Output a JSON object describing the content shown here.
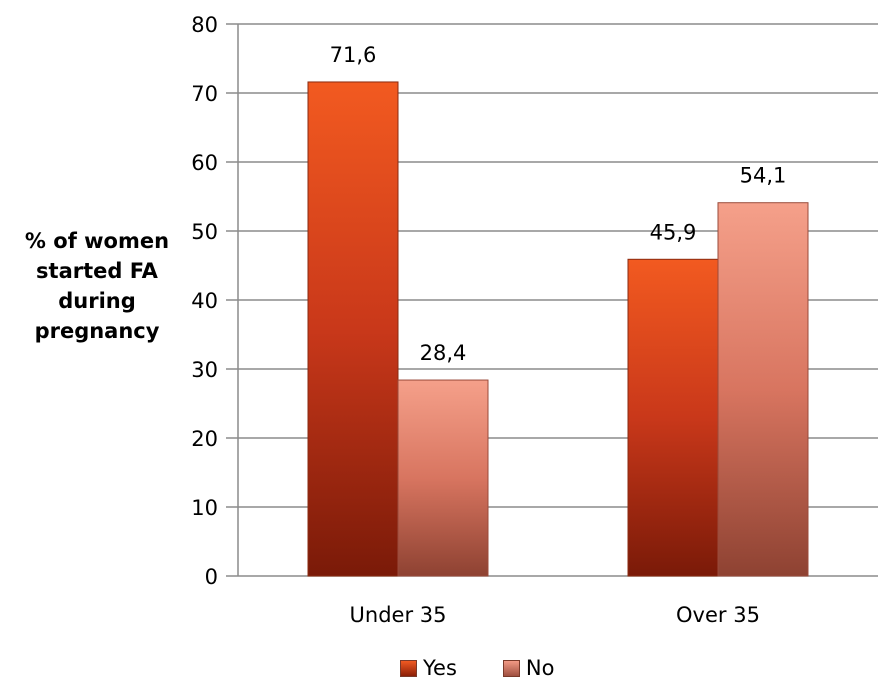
{
  "chart_data": {
    "type": "bar",
    "categories": [
      "Under 35",
      "Over 35"
    ],
    "series": [
      {
        "name": "Yes",
        "values": [
          71.6,
          45.9
        ],
        "labels": [
          "71,6",
          "45,9"
        ],
        "color": "#d8421a"
      },
      {
        "name": "No",
        "values": [
          28.4,
          54.1
        ],
        "labels": [
          "28,4",
          "54,1"
        ],
        "color": "#e07a64"
      }
    ],
    "ylabel_lines": [
      "% of women",
      "started FA",
      "during",
      "pregnancy"
    ],
    "ylim": [
      0,
      80
    ],
    "yticks": [
      "0",
      "10",
      "20",
      "30",
      "40",
      "50",
      "60",
      "70",
      "80"
    ],
    "grid": true,
    "legend_position": "bottom"
  }
}
